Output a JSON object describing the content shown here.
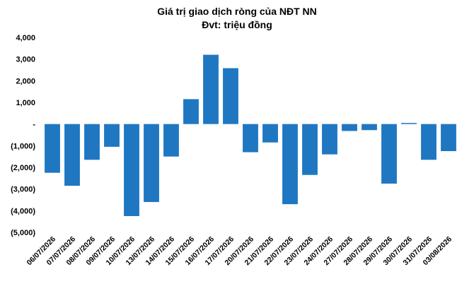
{
  "chart_data": {
    "type": "bar",
    "title": "Giá trị giao dịch ròng của NĐT NN",
    "subtitle": "Đvt: triệu đồng",
    "categories": [
      "06/07/2026",
      "07/07/2026",
      "08/07/2026",
      "09/07/2026",
      "10/07/2026",
      "13/07/2026",
      "14/07/2026",
      "15/07/2026",
      "16/07/2026",
      "17/07/2026",
      "20/07/2026",
      "21/07/2026",
      "22/07/2026",
      "23/07/2026",
      "24/07/2026",
      "27/07/2026",
      "28/07/2026",
      "29/07/2026",
      "30/07/2026",
      "31/07/2026",
      "03/08/2026"
    ],
    "values": [
      -2250,
      -2850,
      -1650,
      -1050,
      -4250,
      -3600,
      -1500,
      1150,
      3200,
      2580,
      -1300,
      -850,
      -3700,
      -2350,
      -1400,
      -320,
      -280,
      -2750,
      50,
      -1650,
      -1250
    ],
    "ylim": [
      -5000,
      4000
    ],
    "yticks": [
      4000,
      3000,
      2000,
      1000,
      0,
      -1000,
      -2000,
      -3000,
      -4000,
      -5000
    ],
    "ytick_labels": [
      "4,000",
      "3,000",
      "2,000",
      "1,000",
      "-",
      "(1,000)",
      "(2,000)",
      "(3,000)",
      "(4,000)",
      "(5,000)"
    ],
    "bar_color": "#1F77C2",
    "grid": false
  }
}
